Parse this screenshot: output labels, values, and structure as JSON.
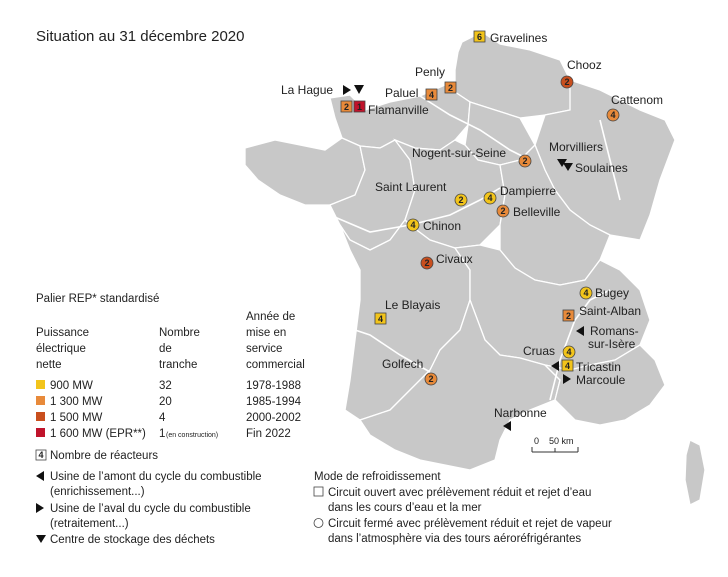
{
  "title": "Situation au 31 décembre 2020",
  "colors": {
    "900": "#f2c41b",
    "1300": "#e88a3a",
    "1500": "#c94f1e",
    "1600": "#c0132b",
    "map": "#c8c8c8",
    "background": "#ffffff"
  },
  "legend": {
    "heading": "Palier REP* standardisé",
    "col1": [
      "Puissance",
      "électrique",
      "nette"
    ],
    "col2": [
      "Nombre",
      "de",
      "tranche"
    ],
    "col3": [
      "Année de",
      "mise en",
      "service",
      "commercial"
    ],
    "rows": [
      {
        "power": "900 MW",
        "count": "32",
        "years": "1978-1988",
        "color": "#f2c41b"
      },
      {
        "power": "1 300 MW",
        "count": "20",
        "years": "1985-1994",
        "color": "#e88a3a"
      },
      {
        "power": "1 500 MW",
        "count": "4",
        "years": "2000-2002",
        "color": "#c94f1e"
      },
      {
        "power": "1 600 MW (EPR**)",
        "count": "1",
        "count_note": "(en construction)",
        "years": "Fin 2022",
        "color": "#c0132b"
      }
    ],
    "reactor_count_box": "4",
    "reactor_count_label": "Nombre de réacteurs",
    "amont_1": "Usine de l’amont du cycle du combustible",
    "amont_2": "(enrichissement...)",
    "aval_1": "Usine de l’aval du cycle du combustible",
    "aval_2": "(retraitement...)",
    "stockage": "Centre de stockage des déchets",
    "cooling_heading": "Mode de refroidissement",
    "open_1": "Circuit ouvert avec prélèvement réduit et rejet d’eau",
    "open_2": "dans les cours d’eau et la mer",
    "closed_1": "Circuit fermé avec prélèvement réduit et rejet de vapeur",
    "closed_2": "dans l’atmosphère via des tours aéroréfrigérantes",
    "scale_zero": "0",
    "scale_label": "50 km"
  },
  "labels": {
    "gravelines": "Gravelines",
    "chooz": "Chooz",
    "penly": "Penly",
    "paluel": "Paluel",
    "lahague": "La Hague",
    "flamanville": "Flamanville",
    "cattenom": "Cattenom",
    "morvilliers": "Morvilliers",
    "soulaines": "Soulaines",
    "nogent": "Nogent-sur-Seine",
    "saintlaurent": "Saint Laurent",
    "dampierre": "Dampierre",
    "belleville": "Belleville",
    "chinon": "Chinon",
    "civaux": "Civaux",
    "bugey": "Bugey",
    "saintalban": "Saint-Alban",
    "romans_1": "Romans-",
    "romans_2": "sur-Isère",
    "leblayais": "Le Blayais",
    "cruas": "Cruas",
    "tricastin": "Tricastin",
    "marcoule": "Marcoule",
    "golfech": "Golfech",
    "narbonne": "Narbonne"
  },
  "sites": {
    "gravelines": "6",
    "chooz": "2",
    "penly": "2",
    "paluel": "4",
    "flamanville_a": "2",
    "flamanville_b": "1",
    "cattenom": "4",
    "nogent": "2",
    "saintlaurent": "2",
    "dampierre": "4",
    "belleville": "2",
    "chinon": "4",
    "civaux": "2",
    "bugey": "4",
    "saintalban": "2",
    "leblayais": "4",
    "cruas": "4",
    "tricastin": "4",
    "golfech": "2"
  }
}
